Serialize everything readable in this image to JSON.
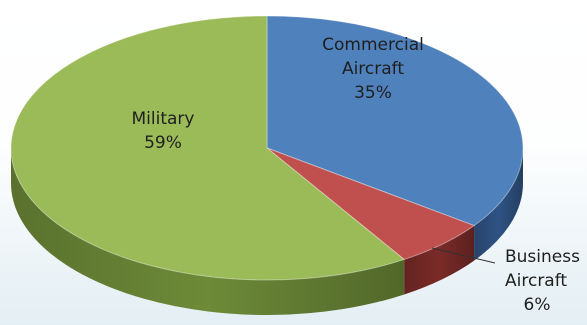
{
  "chart_data": {
    "type": "pie",
    "style": "3d",
    "slices": [
      {
        "label": [
          "Commercial",
          "Aircraft"
        ],
        "value": 35,
        "pct_label": "35%",
        "color": "#4f81bd",
        "side_color": "#2f5383"
      },
      {
        "label": [
          "Business",
          "Aircraft"
        ],
        "value": 6,
        "pct_label": "6%",
        "color": "#c0504d",
        "side_color": "#7a2b28"
      },
      {
        "label": [
          "Military"
        ],
        "value": 59,
        "pct_label": "59%",
        "color": "#9bbb59",
        "side_color": "#6d8a38"
      }
    ],
    "legend": "none",
    "data_labels": "inside, except Business Aircraft outside with leader line"
  }
}
